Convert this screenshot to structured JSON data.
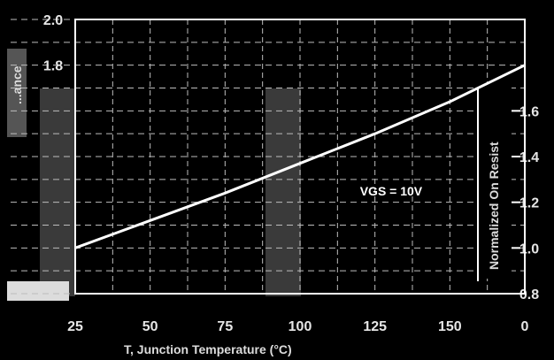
{
  "chart_data": {
    "type": "line",
    "title": "",
    "xlabel": "T, Junction Temperature (°C)",
    "ylabel_left": "...ance",
    "ylabel_right": "Normalized On Resist",
    "x_ticks": [
      "25",
      "50",
      "75",
      "100",
      "125",
      "150",
      "0"
    ],
    "y_ticks": [
      "2.0",
      "1.8",
      "1.6",
      "1.4",
      "1.2",
      "1.0",
      "0.8"
    ],
    "xlim": [
      25,
      175
    ],
    "ylim": [
      0.8,
      2.0
    ],
    "grid": true,
    "series": [
      {
        "x": [
          25,
          50,
          75,
          100,
          125,
          150,
          175
        ],
        "y": [
          1.0,
          1.12,
          1.24,
          1.37,
          1.5,
          1.64,
          1.8
        ]
      }
    ],
    "annotation": "VGS = 10V",
    "annotation_x": 120,
    "annotation_y": 1.23
  },
  "colors": {
    "background": "#000000",
    "grid": "#bdbdbd",
    "line": "#ffffff",
    "frame": "#ffffff"
  }
}
